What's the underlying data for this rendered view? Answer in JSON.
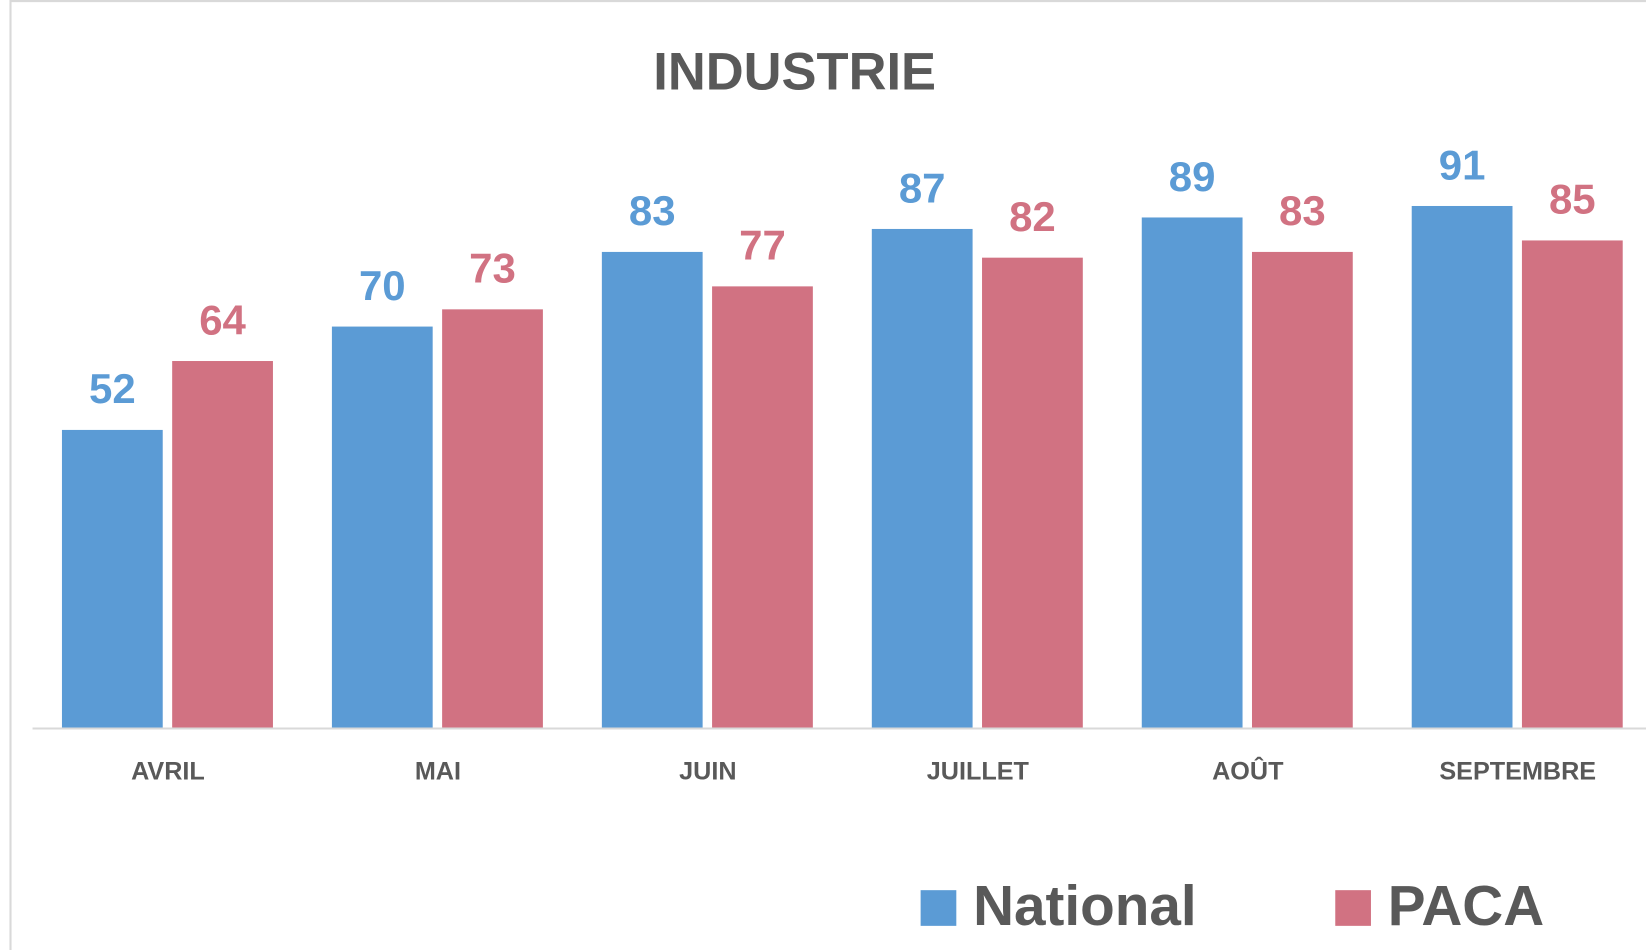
{
  "chart_data": {
    "type": "bar",
    "title": "INDUSTRIE",
    "categories": [
      "AVRIL",
      "MAI",
      "JUIN",
      "JUILLET",
      "AOÛT",
      "SEPTEMBRE"
    ],
    "series": [
      {
        "name": "National",
        "color": "#5b9bd5",
        "values": [
          52,
          70,
          83,
          87,
          89,
          91
        ]
      },
      {
        "name": "PACA",
        "color": "#d17282",
        "values": [
          64,
          73,
          77,
          82,
          83,
          85
        ]
      }
    ],
    "ylim": [
      0,
      100
    ],
    "legend": "bottom"
  }
}
